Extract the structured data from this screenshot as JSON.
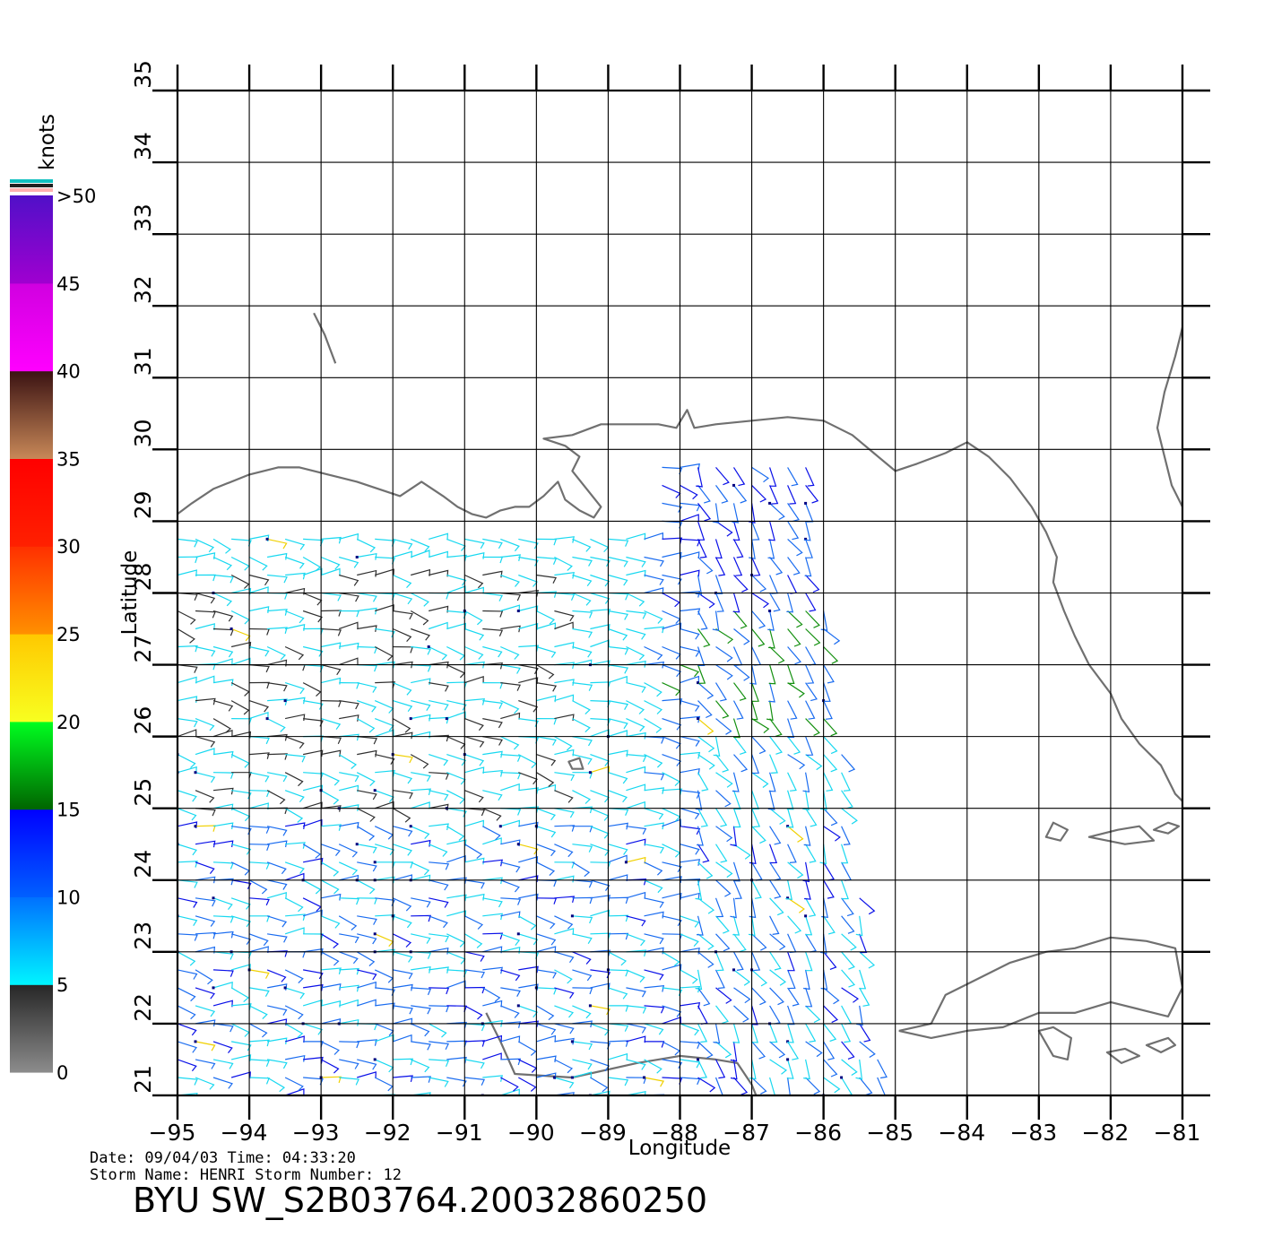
{
  "map": {
    "lon_range": [
      -95,
      -81
    ],
    "lat_range": [
      21,
      35
    ],
    "lon_ticks": [
      "−95",
      "−94",
      "−93",
      "−92",
      "−91",
      "−90",
      "−89",
      "−88",
      "−87",
      "−86",
      "−85",
      "−84",
      "−83",
      "−82",
      "−81"
    ],
    "lat_ticks": [
      "21",
      "22",
      "23",
      "24",
      "25",
      "26",
      "27",
      "28",
      "29",
      "30",
      "31",
      "32",
      "33",
      "34",
      "35"
    ],
    "xlabel": "Longitude",
    "ylabel": "Latitude",
    "grid": true,
    "coastline_color": "#707070",
    "swath_lon_extent": [
      -95,
      -85.5
    ],
    "swath_lat_extent": [
      21,
      30
    ]
  },
  "colorbar": {
    "unit": "knots",
    "labels": [
      "0",
      "5",
      "10",
      "15",
      "20",
      "25",
      "30",
      "35",
      "40",
      "45",
      ">50"
    ],
    "segments": [
      {
        "range": [
          0,
          5
        ],
        "from": "#8c8c8c",
        "to": "#262626"
      },
      {
        "range": [
          5,
          10
        ],
        "from": "#00f5ff",
        "to": "#0070ff"
      },
      {
        "range": [
          10,
          15
        ],
        "from": "#0060ff",
        "to": "#0000ff"
      },
      {
        "range": [
          15,
          20
        ],
        "from": "#006400",
        "to": "#00ff20"
      },
      {
        "range": [
          20,
          25
        ],
        "from": "#f8ff20",
        "to": "#ffc800"
      },
      {
        "range": [
          25,
          30
        ],
        "from": "#ff9000",
        "to": "#ff3000"
      },
      {
        "range": [
          30,
          35
        ],
        "from": "#ff2000",
        "to": "#ff0000"
      },
      {
        "range": [
          35,
          40
        ],
        "from": "#c88858",
        "to": "#3a1212"
      },
      {
        "range": [
          40,
          45
        ],
        "from": "#ff00ff",
        "to": "#d000e0"
      },
      {
        "range": [
          45,
          50
        ],
        "from": "#a000d0",
        "to": "#5010c8"
      }
    ],
    "top_stripes": [
      "#10c0c0",
      "#202020",
      "#ffb0b0"
    ]
  },
  "info": {
    "date_line": "Date: 09/04/03   Time: 04:33:20",
    "storm_line": "Storm  Name:  HENRI    Storm  Number:  12",
    "product": "BYU  SW_S2B03764.20032860250"
  },
  "wind_colors": {
    "calm": "#303030",
    "light": "#18d8f0",
    "moderate": "#1a6cf0",
    "fresh": "#0a10e8",
    "strong": "#149010",
    "gale": "#f0d000"
  }
}
